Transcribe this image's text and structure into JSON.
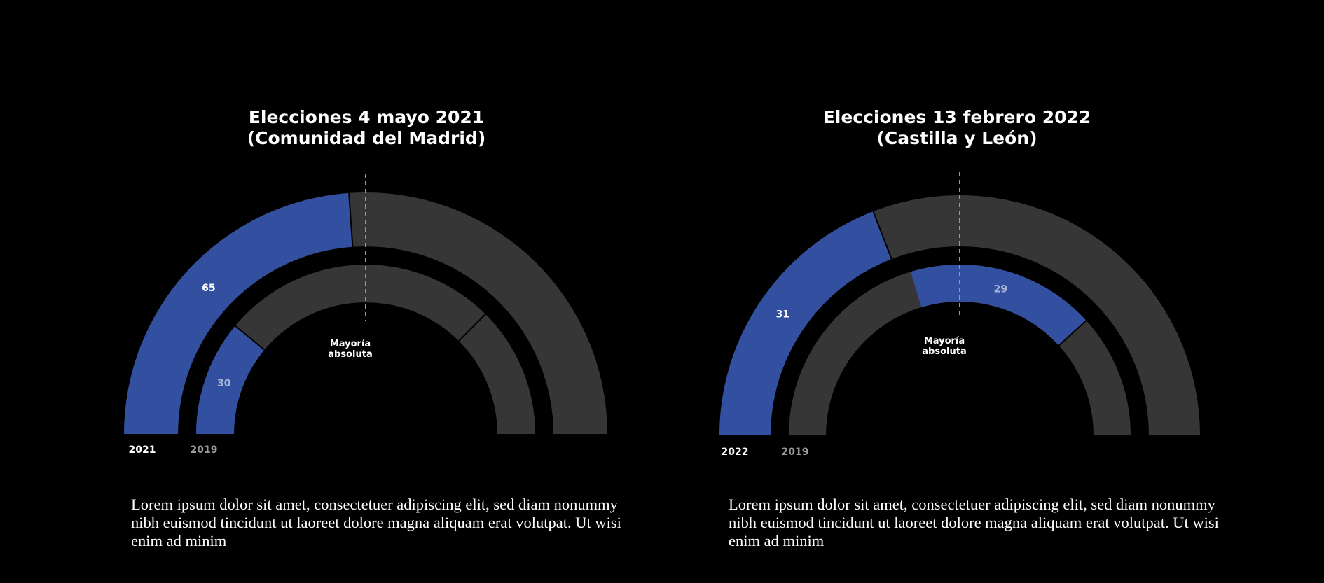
{
  "colors": {
    "highlight": "#3350a0",
    "rest": "#363636",
    "background": "#000000",
    "label_light": "#ffffff",
    "label_muted": "#a8b4d8",
    "ring_label_muted": "#9a9a9a"
  },
  "chart_data": [
    {
      "type": "semicircle-parliament",
      "title_line1": "Elecciones 4 mayo 2021",
      "title_line2": "(Comunidad del Madrid)",
      "majority_label_line1": "Mayoría",
      "majority_label_line2": "absoluta",
      "total_seats": 136,
      "rings": [
        {
          "name": "2021",
          "highlight_seats": 65,
          "label": "65",
          "highlight_start": 0,
          "extra_split_seats": null
        },
        {
          "name": "2019",
          "highlight_seats": 30,
          "label": "30",
          "highlight_start": 0,
          "extra_split_seats": 102
        }
      ]
    },
    {
      "type": "semicircle-parliament",
      "title_line1": "Elecciones 13 febrero 2022",
      "title_line2": "(Castilla y León)",
      "majority_label_line1": "Mayoría",
      "majority_label_line2": "absoluta",
      "total_seats": 81,
      "rings": [
        {
          "name": "2022",
          "highlight_seats": 31,
          "label": "31",
          "highlight_start": 0,
          "extra_split_seats": null
        },
        {
          "name": "2019",
          "highlight_seats": 29,
          "label": "29",
          "highlight_start": 33,
          "extra_split_seats": null
        }
      ]
    }
  ],
  "descriptions": [
    "Lorem ipsum dolor sit amet, consectetuer adipiscing elit, sed diam nonummy nibh euismod tincidunt ut laoreet dolore magna aliquam erat volutpat. Ut wisi enim ad minim",
    "Lorem ipsum dolor sit amet, consectetuer adipiscing elit, sed diam nonummy nibh euismod tincidunt ut laoreet dolore magna aliquam erat volutpat. Ut wisi enim ad minim"
  ]
}
